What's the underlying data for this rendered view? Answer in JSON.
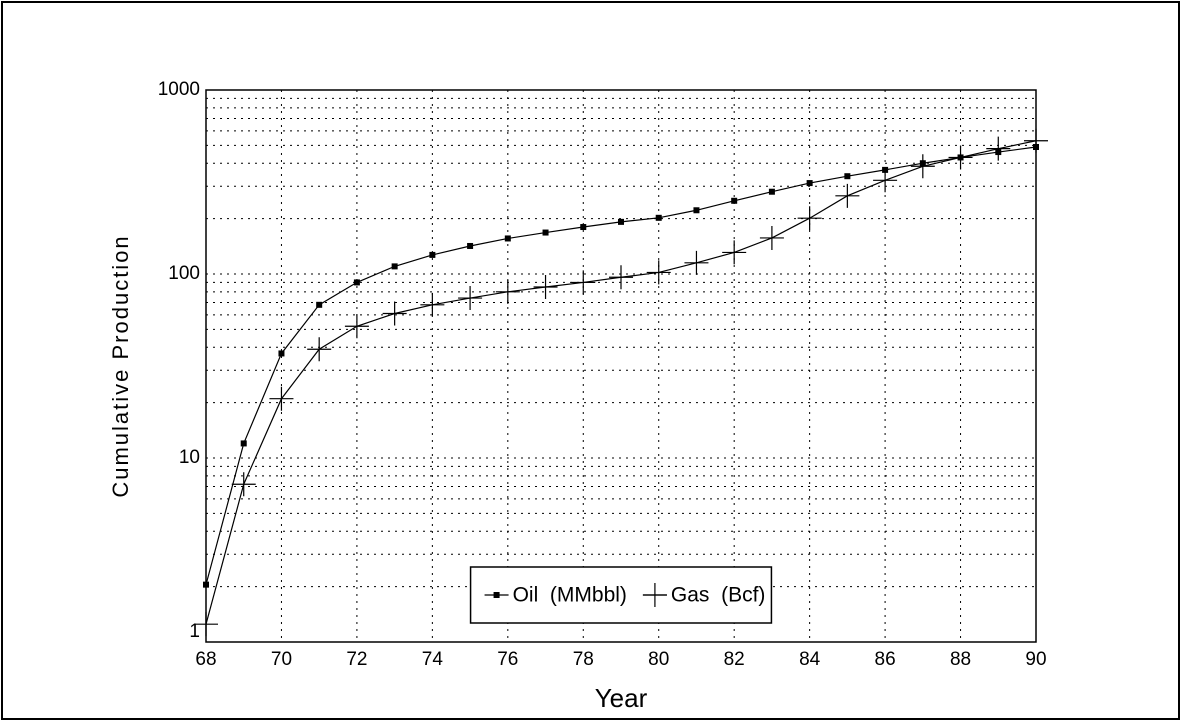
{
  "chart_data": {
    "type": "line",
    "x_label": "Year",
    "y_label": "Cumulative Production",
    "x": [
      68,
      69,
      70,
      71,
      72,
      73,
      74,
      75,
      76,
      77,
      78,
      79,
      80,
      81,
      82,
      83,
      84,
      85,
      86,
      87,
      88,
      89,
      90
    ],
    "series": [
      {
        "name": "Oil  (MMbbl)",
        "color": "#000000",
        "marker": "square",
        "values": [
          2.05,
          12,
          37,
          68,
          90,
          110,
          127,
          142,
          156,
          168,
          180,
          192,
          202,
          222,
          250,
          280,
          312,
          340,
          368,
          400,
          430,
          460,
          490
        ]
      },
      {
        "name": "Gas  (Bcf)",
        "color": "#000000",
        "marker": "plus",
        "values": [
          1.25,
          7.2,
          21,
          39,
          52,
          61,
          68,
          74,
          80,
          85,
          90,
          96,
          102,
          115,
          131,
          157,
          201,
          266,
          323,
          385,
          430,
          480,
          530
        ]
      }
    ],
    "xlim": [
      68,
      90
    ],
    "xticks": [
      68,
      70,
      72,
      74,
      76,
      78,
      80,
      82,
      84,
      86,
      88,
      90
    ],
    "ylim": [
      1,
      1000
    ],
    "yticks": [
      1,
      10,
      100,
      1000
    ],
    "y_scale": "log",
    "grid": true,
    "legend_position": "lower center"
  }
}
